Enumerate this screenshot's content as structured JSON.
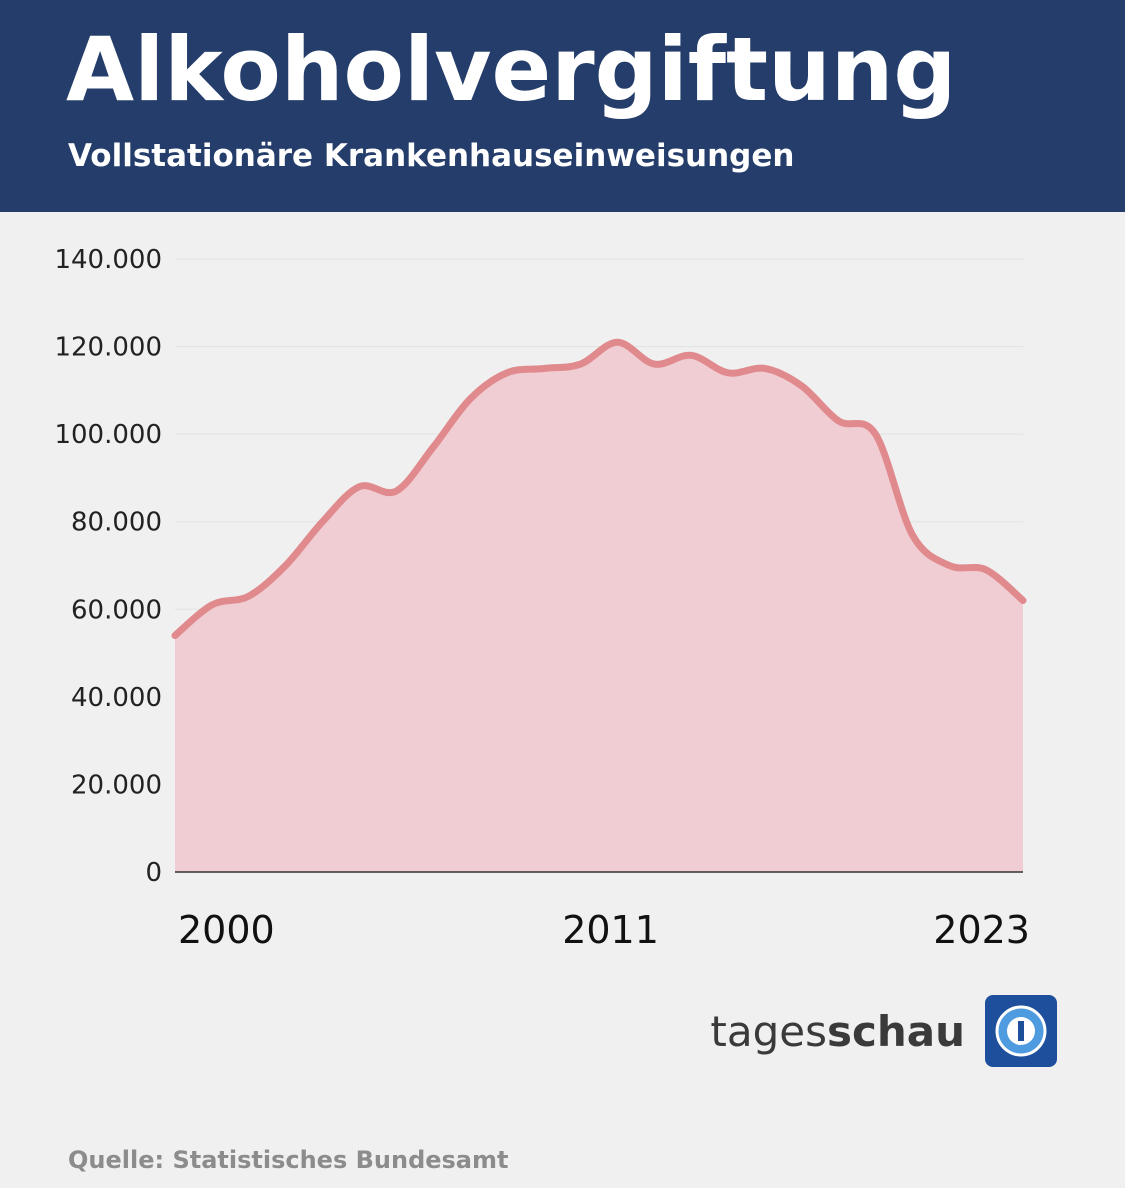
{
  "chart_data": {
    "type": "area",
    "title": "Alkoholvergiftung",
    "subtitle": "Vollstationäre Krankenhauseinweisungen",
    "categories": [
      "2000",
      null,
      null,
      null,
      null,
      null,
      null,
      null,
      null,
      null,
      null,
      "2011",
      null,
      null,
      null,
      null,
      null,
      null,
      null,
      null,
      null,
      null,
      null,
      "2023"
    ],
    "series": [
      {
        "name": "Alkoholvergiftung",
        "color": "#e08a8e",
        "values": [
          54000,
          61000,
          63000,
          70000,
          80000,
          88000,
          87000,
          97000,
          108000,
          114000,
          115000,
          116000,
          121000,
          116000,
          118000,
          114000,
          115000,
          111000,
          103000,
          100000,
          77000,
          70000,
          69000,
          62000
        ]
      }
    ],
    "fill_color": "#f0cdd2",
    "ylim": [
      0,
      140000
    ],
    "yticks": [
      0,
      {
        "value": 20000,
        "label": "20.000"
      },
      {
        "value": 40000,
        "label": "40.000"
      },
      {
        "value": 60000,
        "label": "60.000"
      },
      {
        "value": 80000,
        "label": "80.000"
      },
      {
        "value": 100000,
        "label": "100.000"
      },
      {
        "value": 120000,
        "label": "120.000"
      },
      {
        "value": 140000,
        "label": "140.000"
      }
    ],
    "grid": true,
    "logo": {
      "light": "tages",
      "bold": "schau"
    },
    "source": "Quelle: Statistisches Bundesamt"
  }
}
